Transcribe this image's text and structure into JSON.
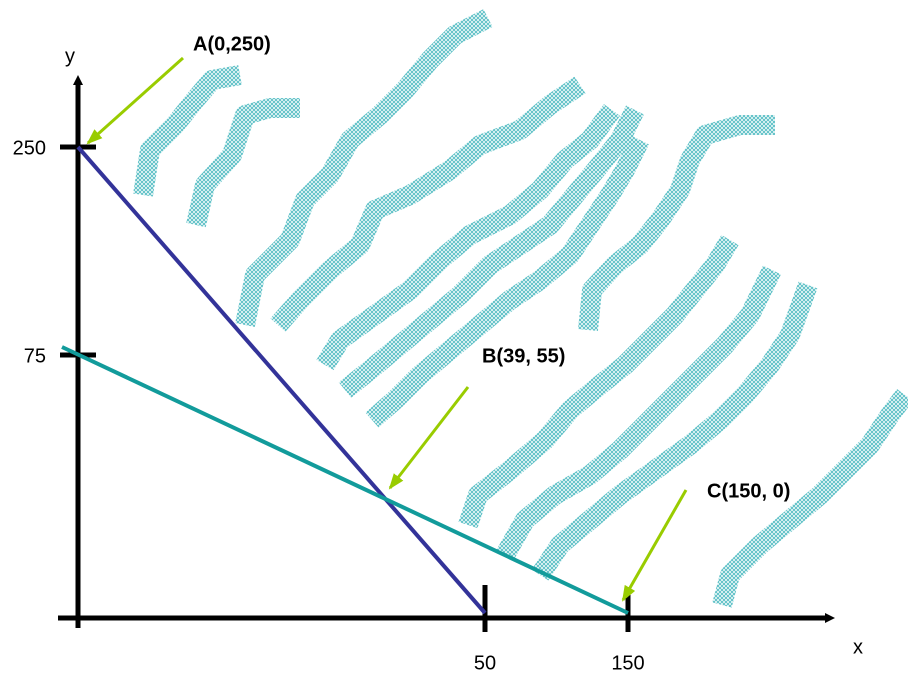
{
  "axes": {
    "x_label": "x",
    "y_label": "y",
    "x_ticks": [
      "50",
      "150"
    ],
    "y_ticks": [
      "250",
      "75"
    ]
  },
  "points": [
    {
      "label": "A(0,250)"
    },
    {
      "label": "B(39, 55)"
    },
    {
      "label": "C(150, 0)"
    }
  ]
}
